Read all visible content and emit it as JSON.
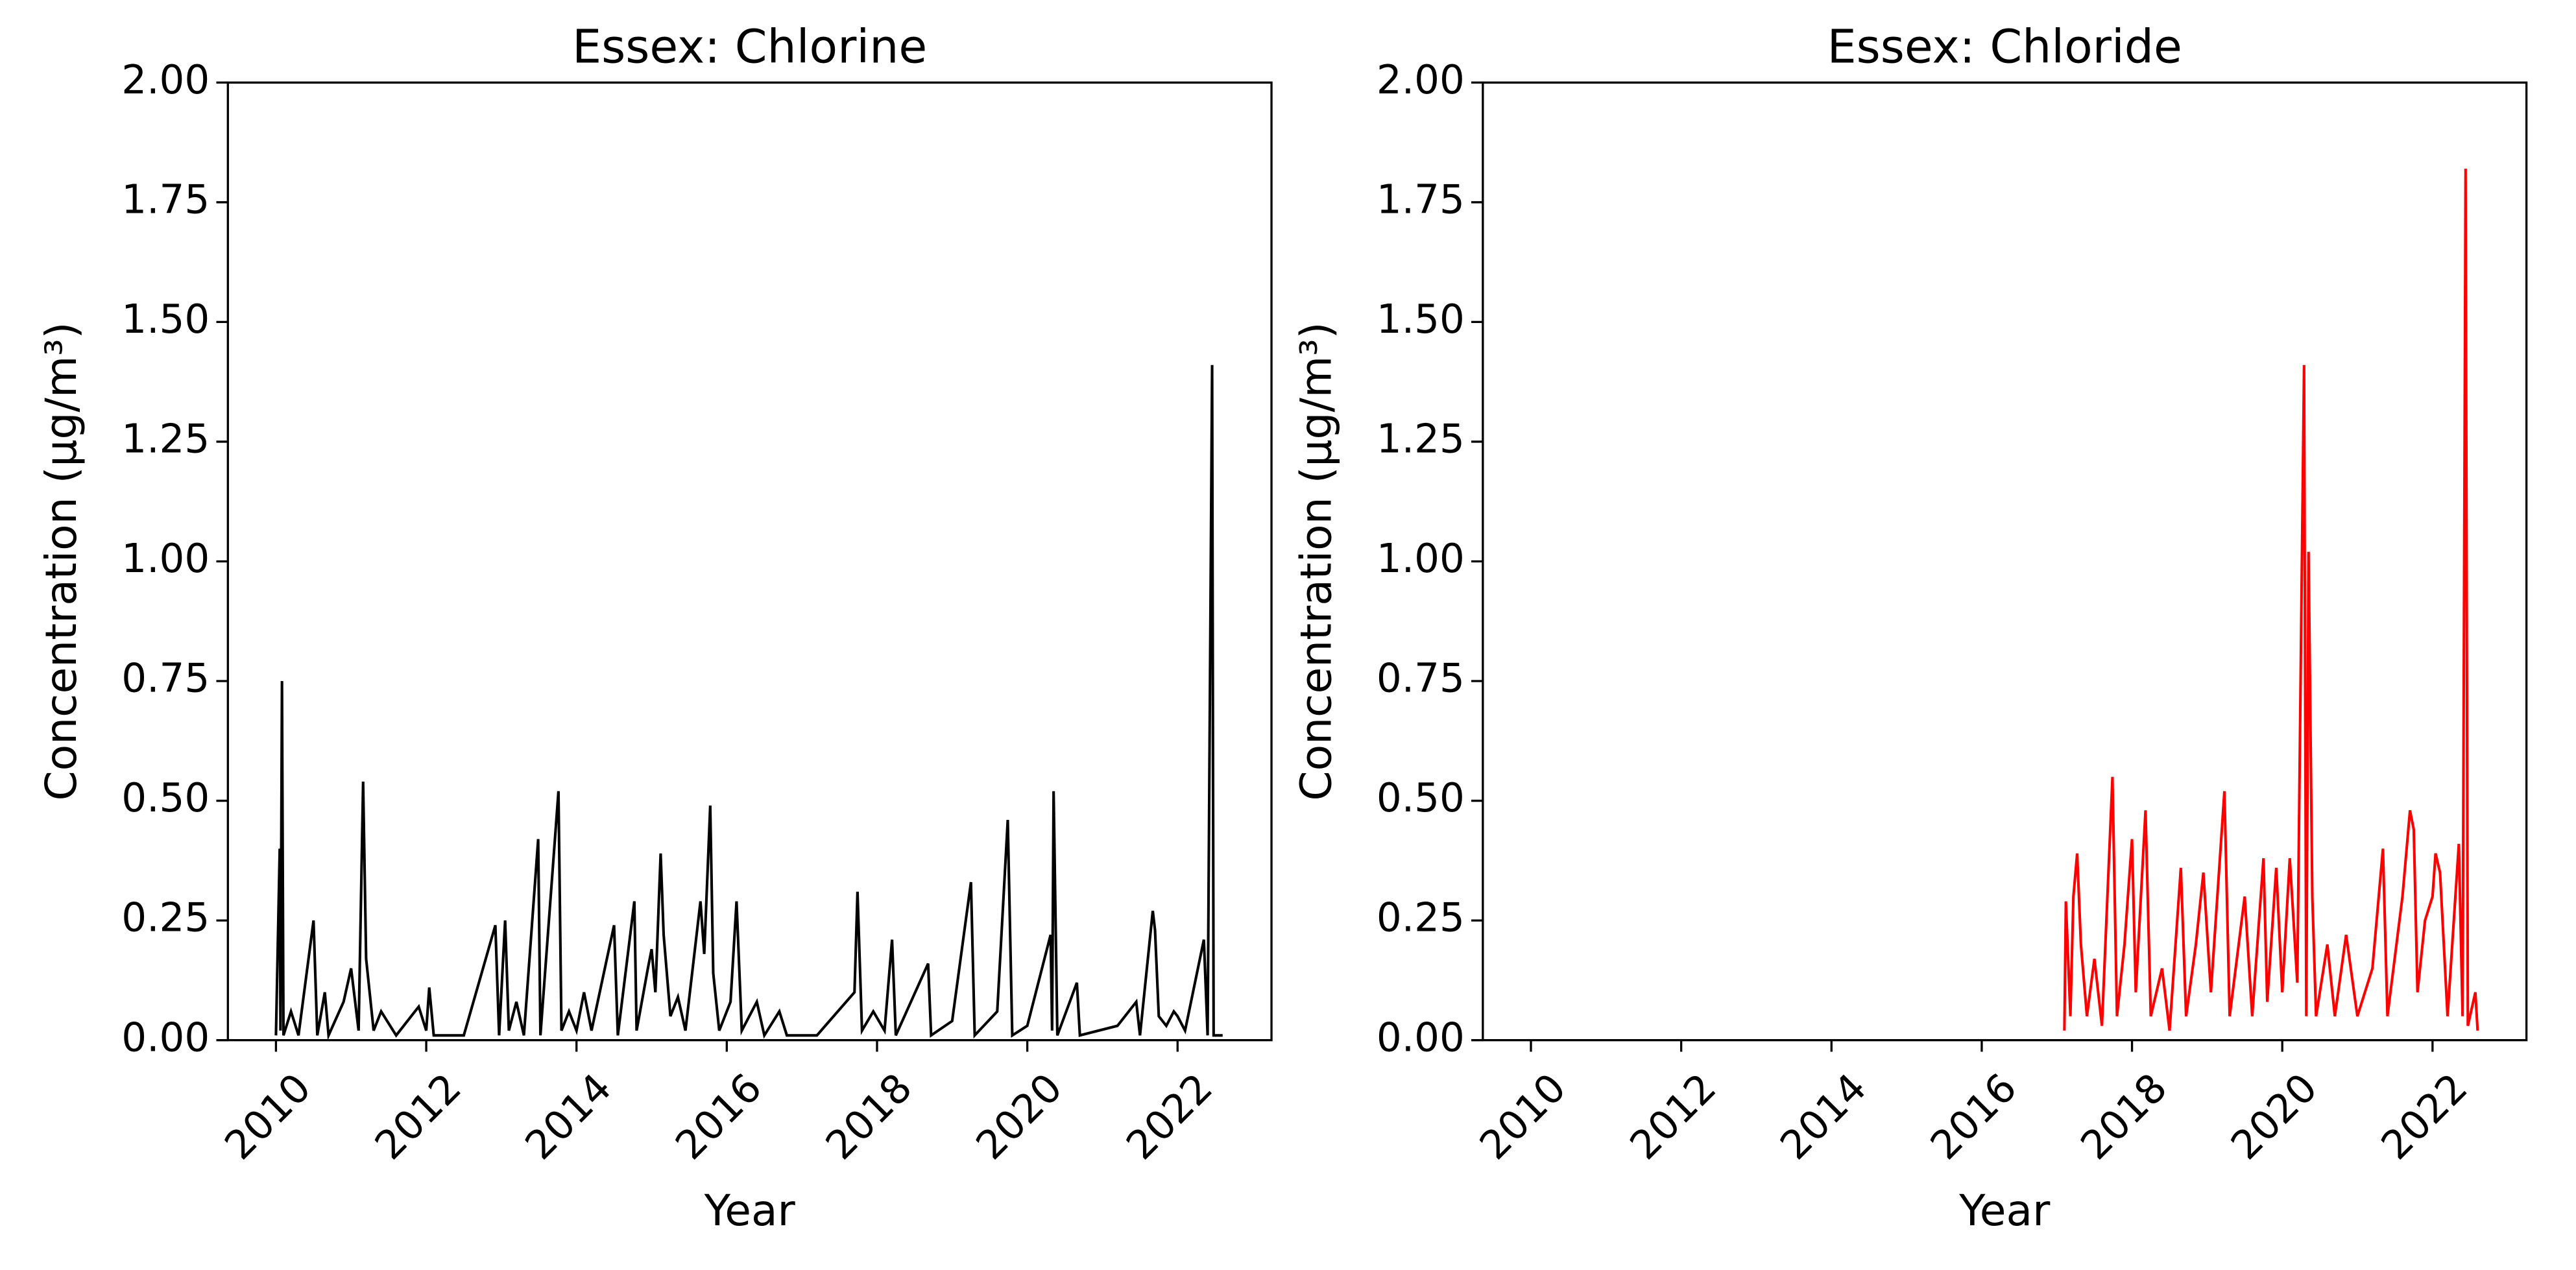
{
  "chart_data": [
    {
      "type": "line",
      "title": "Essex: Chlorine",
      "xlabel": "Year",
      "ylabel": "Concentration (μg/m³)",
      "color": "#000000",
      "xlim": [
        2009.36,
        2023.25
      ],
      "ylim": [
        0,
        2
      ],
      "xticks": [
        2010,
        2012,
        2014,
        2016,
        2018,
        2020,
        2022
      ],
      "yticks": [
        {
          "value": 0,
          "label": "0.00"
        },
        {
          "value": 0.25,
          "label": "0.25"
        },
        {
          "value": 0.5,
          "label": "0.50"
        },
        {
          "value": 0.75,
          "label": "0.75"
        },
        {
          "value": 1,
          "label": "1.00"
        },
        {
          "value": 1.25,
          "label": "1.25"
        },
        {
          "value": 1.5,
          "label": "1.50"
        },
        {
          "value": 1.75,
          "label": "1.75"
        },
        {
          "value": 2,
          "label": "2.00"
        }
      ],
      "x": [
        2010.0,
        2010.05,
        2010.06,
        2010.08,
        2010.1,
        2010.2,
        2010.3,
        2010.5,
        2010.55,
        2010.65,
        2010.7,
        2010.9,
        2011.0,
        2011.1,
        2011.16,
        2011.2,
        2011.3,
        2011.4,
        2011.6,
        2011.9,
        2012.0,
        2012.04,
        2012.1,
        2012.5,
        2012.92,
        2012.97,
        2013.05,
        2013.1,
        2013.2,
        2013.3,
        2013.49,
        2013.52,
        2013.76,
        2013.8,
        2013.9,
        2014.0,
        2014.1,
        2014.2,
        2014.5,
        2014.55,
        2014.77,
        2014.8,
        2014.95,
        2015.0,
        2015.05,
        2015.12,
        2015.16,
        2015.25,
        2015.35,
        2015.45,
        2015.65,
        2015.7,
        2015.78,
        2015.82,
        2015.9,
        2016.05,
        2016.13,
        2016.2,
        2016.4,
        2016.5,
        2016.7,
        2016.8,
        2017.2,
        2017.7,
        2017.74,
        2017.8,
        2017.95,
        2018.1,
        2018.2,
        2018.25,
        2018.68,
        2018.72,
        2019.0,
        2019.25,
        2019.3,
        2019.6,
        2019.74,
        2019.8,
        2020.0,
        2020.31,
        2020.33,
        2020.35,
        2020.4,
        2020.66,
        2020.7,
        2021.2,
        2021.45,
        2021.5,
        2021.67,
        2021.7,
        2021.75,
        2021.85,
        2021.95,
        2022.0,
        2022.1,
        2022.35,
        2022.4,
        2022.46,
        2022.48,
        2022.6
      ],
      "values": [
        0.01,
        0.4,
        0.02,
        0.75,
        0.01,
        0.06,
        0.01,
        0.25,
        0.01,
        0.1,
        0.01,
        0.08,
        0.15,
        0.02,
        0.54,
        0.17,
        0.02,
        0.06,
        0.01,
        0.07,
        0.02,
        0.11,
        0.01,
        0.01,
        0.24,
        0.01,
        0.25,
        0.02,
        0.08,
        0.01,
        0.42,
        0.01,
        0.52,
        0.02,
        0.06,
        0.02,
        0.1,
        0.02,
        0.24,
        0.01,
        0.29,
        0.02,
        0.15,
        0.19,
        0.1,
        0.39,
        0.22,
        0.05,
        0.09,
        0.02,
        0.29,
        0.18,
        0.49,
        0.14,
        0.02,
        0.08,
        0.29,
        0.02,
        0.08,
        0.01,
        0.06,
        0.01,
        0.01,
        0.1,
        0.31,
        0.02,
        0.06,
        0.02,
        0.21,
        0.01,
        0.16,
        0.01,
        0.04,
        0.33,
        0.01,
        0.06,
        0.46,
        0.01,
        0.03,
        0.22,
        0.02,
        0.52,
        0.01,
        0.12,
        0.01,
        0.03,
        0.08,
        0.01,
        0.27,
        0.23,
        0.05,
        0.03,
        0.06,
        0.05,
        0.02,
        0.21,
        0.01,
        1.41,
        0.01,
        0.01
      ]
    },
    {
      "type": "line",
      "title": "Essex: Chloride",
      "xlabel": "Year",
      "ylabel": "Concentration (μg/m³)",
      "color": "#ff0000",
      "xlim": [
        2009.36,
        2023.25
      ],
      "ylim": [
        0,
        2
      ],
      "xticks": [
        2010,
        2012,
        2014,
        2016,
        2018,
        2020,
        2022
      ],
      "yticks": [
        {
          "value": 0,
          "label": "0.00"
        },
        {
          "value": 0.25,
          "label": "0.25"
        },
        {
          "value": 0.5,
          "label": "0.50"
        },
        {
          "value": 0.75,
          "label": "0.75"
        },
        {
          "value": 1,
          "label": "1.00"
        },
        {
          "value": 1.25,
          "label": "1.25"
        },
        {
          "value": 1.5,
          "label": "1.50"
        },
        {
          "value": 1.75,
          "label": "1.75"
        },
        {
          "value": 2,
          "label": "2.00"
        }
      ],
      "x": [
        2017.1,
        2017.12,
        2017.18,
        2017.22,
        2017.27,
        2017.32,
        2017.4,
        2017.5,
        2017.6,
        2017.74,
        2017.8,
        2017.9,
        2018.0,
        2018.05,
        2018.18,
        2018.25,
        2018.4,
        2018.5,
        2018.65,
        2018.72,
        2018.85,
        2018.95,
        2019.05,
        2019.23,
        2019.3,
        2019.5,
        2019.6,
        2019.75,
        2019.8,
        2019.92,
        2020.0,
        2020.1,
        2020.2,
        2020.29,
        2020.32,
        2020.35,
        2020.4,
        2020.45,
        2020.6,
        2020.7,
        2020.85,
        2021.0,
        2021.2,
        2021.34,
        2021.4,
        2021.6,
        2021.7,
        2021.75,
        2021.8,
        2021.9,
        2022.0,
        2022.04,
        2022.1,
        2022.2,
        2022.35,
        2022.4,
        2022.44,
        2022.47,
        2022.57,
        2022.6
      ],
      "values": [
        0.02,
        0.29,
        0.05,
        0.3,
        0.39,
        0.2,
        0.05,
        0.17,
        0.03,
        0.55,
        0.05,
        0.2,
        0.42,
        0.1,
        0.48,
        0.05,
        0.15,
        0.02,
        0.36,
        0.05,
        0.2,
        0.35,
        0.1,
        0.52,
        0.05,
        0.3,
        0.05,
        0.38,
        0.08,
        0.36,
        0.1,
        0.38,
        0.12,
        1.41,
        0.05,
        1.02,
        0.3,
        0.05,
        0.2,
        0.05,
        0.22,
        0.05,
        0.15,
        0.4,
        0.05,
        0.3,
        0.48,
        0.44,
        0.1,
        0.25,
        0.3,
        0.39,
        0.35,
        0.05,
        0.41,
        0.05,
        1.82,
        0.03,
        0.1,
        0.02
      ]
    }
  ]
}
